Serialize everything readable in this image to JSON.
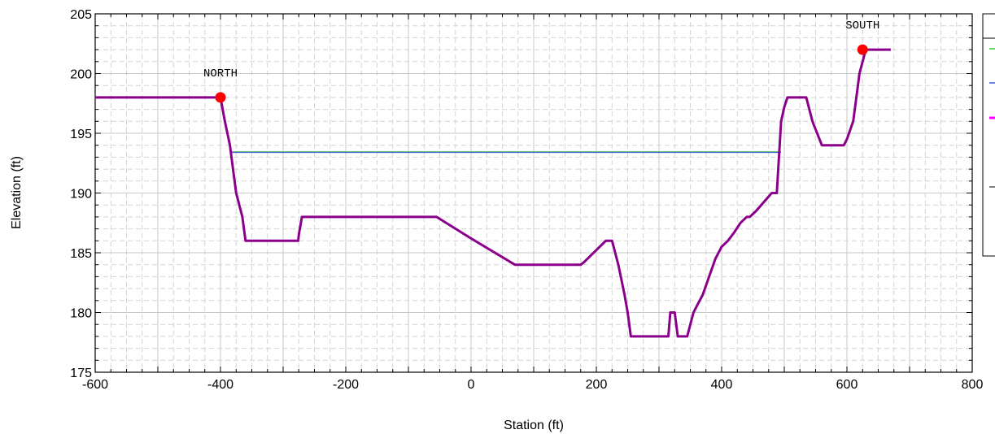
{
  "chart_data": {
    "type": "line",
    "xlabel": "Station (ft)",
    "ylabel": "Elevation (ft)",
    "xlim": [
      -600,
      800
    ],
    "ylim": [
      175,
      205
    ],
    "x_ticks": [
      -600,
      -400,
      -200,
      0,
      200,
      400,
      600,
      800
    ],
    "y_ticks": [
      175,
      180,
      185,
      190,
      195,
      200,
      205
    ],
    "grid": true,
    "legend": "right (partially visible)",
    "series": [
      {
        "color": "#8b008b",
        "x": [
          -600,
          -400,
          -393,
          -385,
          -380,
          -375,
          -365,
          -360,
          -350,
          -276,
          -275,
          -270,
          -265,
          -60,
          -55,
          0,
          70,
          75,
          175,
          180,
          215,
          225,
          235,
          245,
          250,
          255,
          260,
          315,
          318,
          325,
          330,
          335,
          345,
          350,
          355,
          360,
          370,
          380,
          390,
          400,
          410,
          420,
          430,
          440,
          445,
          455,
          480,
          488,
          495,
          500,
          505,
          510,
          515,
          535,
          540,
          545,
          560,
          565,
          595,
          600,
          610,
          615,
          620,
          625,
          630,
          670
        ],
        "y": [
          198,
          198,
          196,
          194,
          192,
          190,
          188,
          186,
          186,
          186,
          186.5,
          188,
          188,
          188,
          188,
          186.2,
          184,
          184,
          184,
          184.2,
          186,
          186,
          184,
          181.5,
          180,
          178,
          178,
          178,
          180,
          180,
          178,
          178,
          178,
          179,
          180,
          180.5,
          181.5,
          183,
          184.5,
          185.5,
          186,
          186.7,
          187.5,
          188,
          188,
          188.5,
          190,
          190,
          196,
          197.2,
          198,
          198,
          198,
          198,
          197,
          196,
          194,
          194,
          194,
          194.5,
          196,
          198,
          200,
          201,
          202,
          202
        ]
      },
      {
        "color": "#3a5fcd",
        "x": [
          -385,
          495
        ],
        "y": [
          193.4,
          193.4
        ]
      },
      {
        "color": "#32cd32",
        "x": [
          -385,
          495
        ],
        "y": [
          193.45,
          193.45
        ]
      }
    ],
    "markers": [
      {
        "x": -400,
        "y": 198,
        "color": "#ff0000"
      },
      {
        "x": 625,
        "y": 202,
        "color": "#ff0000"
      }
    ],
    "annotations": [
      {
        "text": "NORTH",
        "x": -400,
        "y": 198
      },
      {
        "text": "SOUTH",
        "x": 625,
        "y": 202
      }
    ],
    "legend_colors": [
      "#32cd32",
      "#3a5fcd",
      "#ff00ff"
    ]
  }
}
